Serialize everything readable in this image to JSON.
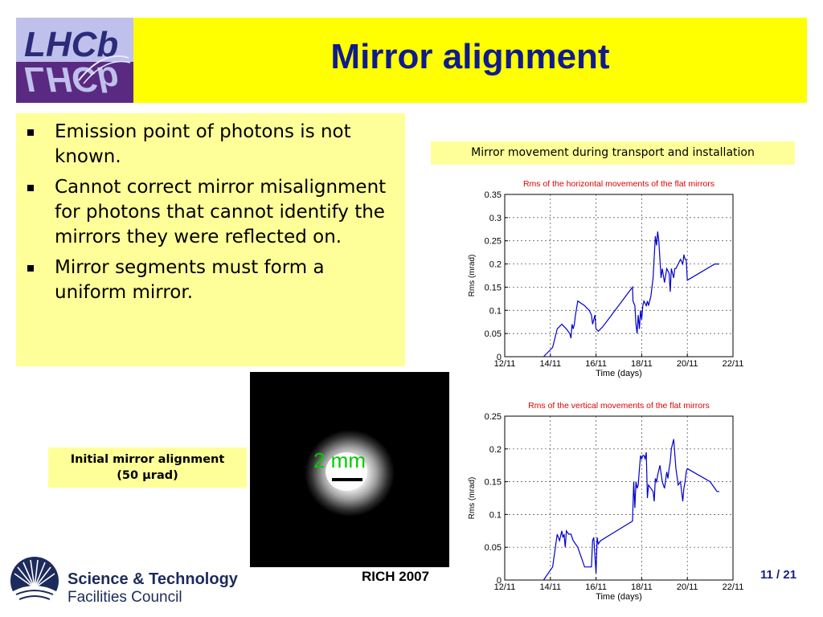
{
  "slide": {
    "title": "Mirror alignment",
    "logo_text": "LHCb",
    "bullets": [
      "Emission point of photons is not known.",
      "Cannot correct mirror misalignment for photons that cannot identify the mirrors they were reflected on.",
      "Mirror segments must form a uniform mirror."
    ],
    "plots_caption": "Mirror movement during transport and installation",
    "alignment_caption_line1": "Initial mirror alignment",
    "alignment_caption_line2": "(50 μrad)",
    "scale_label": "2 mm",
    "footer_conference": "RICH 2007",
    "footer_page": "11 / 21",
    "org_line1": "Science & Technology",
    "org_line2": "Facilities Council",
    "colors": {
      "title_bar": "#ffff00",
      "title_text": "#0f1b8c",
      "bullet_box": "#ffff99",
      "plot_line": "#0000cc",
      "plot_title": "#e00000",
      "scale_label": "#00cc00"
    }
  },
  "chart_data": [
    {
      "type": "line",
      "title": "Rms of the horizontal movements of the flat mirrors",
      "xlabel": "Time (days)",
      "ylabel": "Rms (mrad)",
      "x_tick_labels": [
        "12/11",
        "14/11",
        "16/11",
        "18/11",
        "20/11",
        "22/11"
      ],
      "x_ticks": [
        12,
        14,
        16,
        18,
        20,
        22
      ],
      "y_ticks": [
        0,
        0.05,
        0.1,
        0.15,
        0.2,
        0.25,
        0.3,
        0.35
      ],
      "xlim": [
        12,
        22
      ],
      "ylim": [
        0,
        0.35
      ],
      "grid": true,
      "x": [
        13.7,
        14.1,
        14.3,
        14.5,
        14.7,
        14.85,
        14.9,
        14.95,
        15.0,
        15.05,
        15.1,
        15.2,
        15.5,
        15.7,
        15.8,
        15.85,
        15.9,
        15.95,
        16.0,
        16.1,
        16.2,
        16.3,
        17.6,
        17.62,
        17.7,
        17.75,
        17.8,
        17.85,
        17.9,
        17.95,
        18.0,
        18.05,
        18.1,
        18.2,
        18.25,
        18.3,
        18.4,
        18.5,
        18.6,
        18.65,
        18.7,
        18.75,
        18.8,
        18.85,
        18.9,
        19.0,
        19.1,
        19.2,
        19.25,
        19.3,
        19.35,
        19.4,
        19.45,
        19.5,
        19.6,
        19.7,
        19.8,
        19.85,
        19.9,
        19.95,
        20.0,
        21.2,
        21.4
      ],
      "y": [
        0.0,
        0.02,
        0.06,
        0.07,
        0.06,
        0.05,
        0.04,
        0.07,
        0.06,
        0.07,
        0.09,
        0.12,
        0.11,
        0.1,
        0.09,
        0.07,
        0.08,
        0.09,
        0.06,
        0.055,
        0.06,
        0.065,
        0.15,
        0.12,
        0.11,
        0.07,
        0.05,
        0.09,
        0.06,
        0.1,
        0.08,
        0.11,
        0.12,
        0.11,
        0.12,
        0.11,
        0.13,
        0.17,
        0.26,
        0.24,
        0.27,
        0.25,
        0.21,
        0.17,
        0.19,
        0.16,
        0.19,
        0.18,
        0.14,
        0.19,
        0.18,
        0.17,
        0.19,
        0.19,
        0.2,
        0.21,
        0.2,
        0.22,
        0.21,
        0.21,
        0.165,
        0.2,
        0.2
      ]
    },
    {
      "type": "line",
      "title": "Rms of the vertical movements of the flat mirrors",
      "xlabel": "Time (days)",
      "ylabel": "Rms (mrad)",
      "x_tick_labels": [
        "12/11",
        "14/11",
        "16/11",
        "18/11",
        "20/11",
        "22/11"
      ],
      "x_ticks": [
        12,
        14,
        16,
        18,
        20,
        22
      ],
      "y_ticks": [
        0,
        0.05,
        0.1,
        0.15,
        0.2,
        0.25
      ],
      "xlim": [
        12,
        22
      ],
      "ylim": [
        0,
        0.25
      ],
      "grid": true,
      "x": [
        13.7,
        14.1,
        14.3,
        14.4,
        14.5,
        14.55,
        14.6,
        14.65,
        14.7,
        14.8,
        14.9,
        15.0,
        15.2,
        15.5,
        15.8,
        15.85,
        15.9,
        16.0,
        16.05,
        16.1,
        16.2,
        17.6,
        17.65,
        17.7,
        17.75,
        17.8,
        17.85,
        17.9,
        17.95,
        18.0,
        18.05,
        18.1,
        18.15,
        18.2,
        18.25,
        18.3,
        18.4,
        18.5,
        18.55,
        18.6,
        18.65,
        18.7,
        18.8,
        18.9,
        19.0,
        19.1,
        19.15,
        19.2,
        19.25,
        19.3,
        19.4,
        19.5,
        19.6,
        19.7,
        19.8,
        19.85,
        19.9,
        19.95,
        20.0,
        21.0,
        21.3,
        21.4
      ],
      "y": [
        0.0,
        0.02,
        0.07,
        0.06,
        0.075,
        0.065,
        0.07,
        0.05,
        0.075,
        0.07,
        0.07,
        0.06,
        0.05,
        0.02,
        0.02,
        0.06,
        0.065,
        0.01,
        0.065,
        0.055,
        0.06,
        0.09,
        0.15,
        0.11,
        0.15,
        0.14,
        0.145,
        0.17,
        0.19,
        0.185,
        0.19,
        0.19,
        0.185,
        0.195,
        0.125,
        0.145,
        0.14,
        0.135,
        0.12,
        0.155,
        0.15,
        0.16,
        0.175,
        0.15,
        0.14,
        0.165,
        0.155,
        0.17,
        0.18,
        0.2,
        0.215,
        0.17,
        0.145,
        0.15,
        0.12,
        0.14,
        0.15,
        0.165,
        0.17,
        0.15,
        0.135,
        0.135
      ]
    }
  ]
}
